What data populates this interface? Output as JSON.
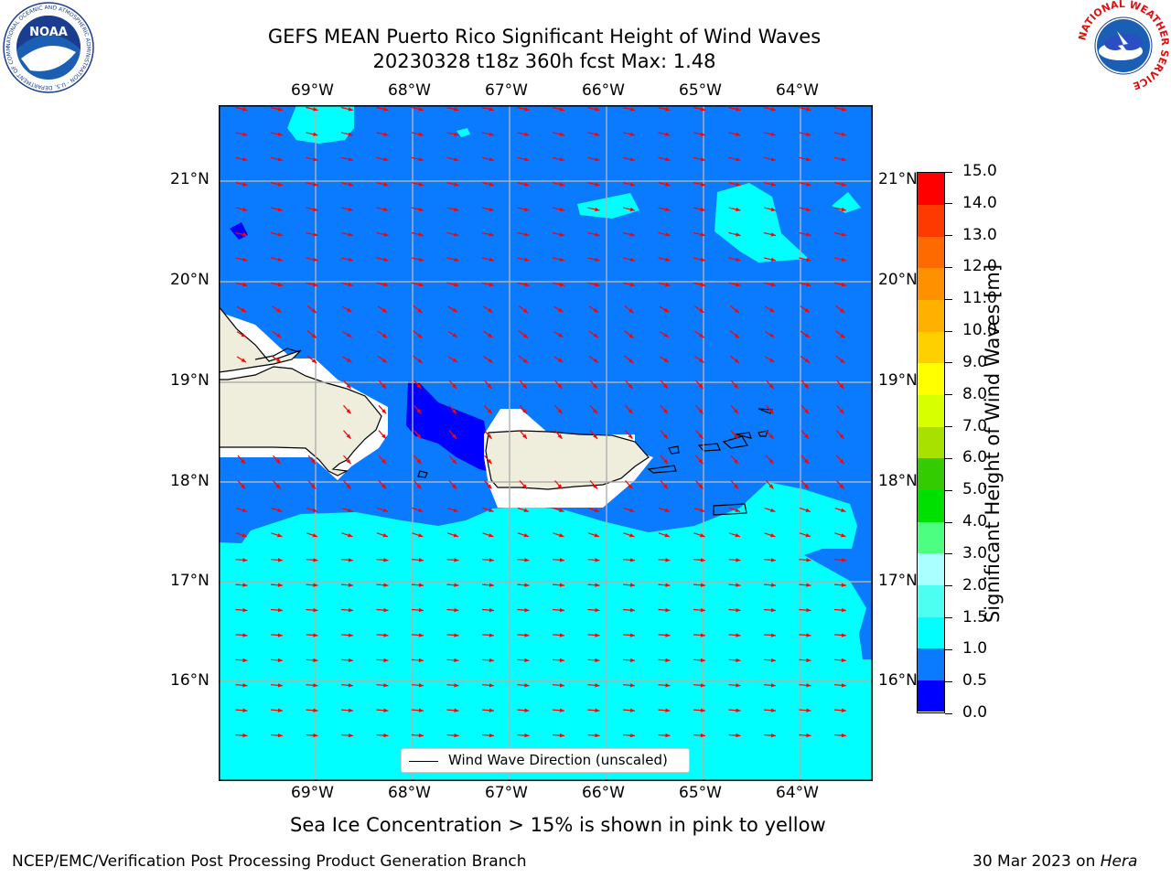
{
  "header": {
    "title_line1": "GEFS MEAN Puerto Rico Significant Height of Wind Waves",
    "title_line2": "20230328 t18z 360h fcst   Max: 1.48"
  },
  "map": {
    "lon_ticks": [
      "69°W",
      "68°W",
      "67°W",
      "66°W",
      "65°W",
      "64°W"
    ],
    "lat_ticks": [
      "21°N",
      "20°N",
      "19°N",
      "18°N",
      "17°N",
      "16°N"
    ],
    "legend_label": "Wind Wave Direction (unscaled)",
    "arrow_color": "#ff0000",
    "land_color": "#efeedc",
    "grid_color": "#b0b0b0"
  },
  "colorbar": {
    "label": "Significant Height of Wind Waves [m]",
    "ticks": [
      "0.0",
      "0.5",
      "1.0",
      "1.5",
      "2.0",
      "3.0",
      "4.0",
      "5.0",
      "6.0",
      "7.0",
      "8.0",
      "9.0",
      "10.0",
      "11.0",
      "12.0",
      "13.0",
      "14.0",
      "15.0"
    ],
    "colors": [
      "#0000ff",
      "#0a7aff",
      "#00ffff",
      "#4dfff0",
      "#aaffff",
      "#4dff80",
      "#00e000",
      "#33cc00",
      "#a8e000",
      "#d8ff00",
      "#ffff00",
      "#ffd000",
      "#ffb000",
      "#ff9000",
      "#ff6a00",
      "#ff3a00",
      "#ff0000"
    ]
  },
  "footer": {
    "note": "Sea Ice Concentration > 15% is shown in pink to yellow",
    "left": "NCEP/EMC/Verification Post Processing Product Generation Branch",
    "date": "30 Mar 2023 on ",
    "machine": "Hera"
  },
  "logos": {
    "noaa_text": "NOAA",
    "noaa_ring": "NATIONAL OCEANIC AND ATMOSPHERIC ADMINISTRATION · U.S. DEPARTMENT OF COMMERCE",
    "nws_ring": "NATIONAL WEATHER SERVICE"
  }
}
